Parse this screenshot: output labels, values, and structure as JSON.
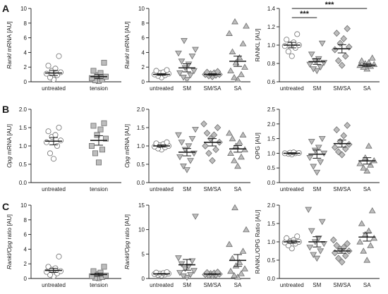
{
  "panel_letters": [
    "A",
    "B",
    "C"
  ],
  "chart_data": [
    {
      "id": "A1",
      "type": "scatter",
      "ylabel_italic": "Rankl",
      "ylabel_rest": " mRNA [AU]",
      "ylim": [
        0,
        10
      ],
      "yticks": [
        "0",
        "2",
        "4",
        "6",
        "8",
        "10"
      ],
      "categories": [
        "untreated",
        "tension"
      ],
      "series": [
        {
          "marker": "circle",
          "fill": "#ffffff",
          "points": [
            0.3,
            0.6,
            0.9,
            1.1,
            1.3,
            1.5,
            1.8,
            2.2,
            3.5
          ],
          "mean": 1.2,
          "sem": 0.35
        },
        {
          "marker": "square",
          "fill": "#bdbdbd",
          "points": [
            0.1,
            0.2,
            0.3,
            0.5,
            0.7,
            0.9,
            1.2,
            1.5,
            2.6
          ],
          "mean": 0.7,
          "sem": 0.28
        }
      ]
    },
    {
      "id": "A2",
      "type": "scatter",
      "ylabel_italic": "Rankl",
      "ylabel_rest": " mRNA [AU]",
      "ylim": [
        0,
        10
      ],
      "yticks": [
        "0",
        "2",
        "4",
        "6",
        "8",
        "10"
      ],
      "categories": [
        "untreated",
        "SM",
        "SM/SA",
        "SA"
      ],
      "series": [
        {
          "marker": "circle",
          "fill": "#ffffff",
          "points": [
            0.6,
            0.8,
            0.9,
            1.0,
            1.1,
            1.2,
            1.3,
            1.5,
            1.6
          ],
          "mean": 1.0,
          "sem": 0.12
        },
        {
          "marker": "tri-down",
          "fill": "#bdbdbd",
          "points": [
            0.3,
            0.6,
            0.9,
            1.2,
            1.5,
            1.9,
            2.4,
            2.8,
            3.5,
            3.9,
            4.4,
            5.6
          ],
          "mean": 1.9,
          "sem": 0.55
        },
        {
          "marker": "diamond",
          "fill": "#bdbdbd",
          "points": [
            0.7,
            0.8,
            0.9,
            1.0,
            1.0,
            1.1,
            1.2,
            1.3,
            1.4
          ],
          "mean": 1.0,
          "sem": 0.1
        },
        {
          "marker": "tri-up",
          "fill": "#bdbdbd",
          "points": [
            0.3,
            0.6,
            1.0,
            1.5,
            2.0,
            2.6,
            3.3,
            4.1,
            5.2,
            6.6,
            7.6,
            8.2
          ],
          "mean": 2.8,
          "sem": 0.7
        }
      ]
    },
    {
      "id": "A3",
      "type": "scatter",
      "ylabel_italic": "",
      "ylabel_rest": "RANKL [AU]",
      "ylim": [
        0.6,
        1.4
      ],
      "yticks": [
        "0.6",
        "0.8",
        "1.0",
        "1.2",
        "1.4"
      ],
      "categories": [
        "untreated",
        "SM",
        "SM/SA",
        "SA"
      ],
      "series": [
        {
          "marker": "circle",
          "fill": "#ffffff",
          "points": [
            0.88,
            0.93,
            0.97,
            0.99,
            1.0,
            1.01,
            1.03,
            1.06,
            1.12
          ],
          "mean": 1.0,
          "sem": 0.03
        },
        {
          "marker": "tri-down",
          "fill": "#bdbdbd",
          "points": [
            0.72,
            0.74,
            0.76,
            0.79,
            0.81,
            0.83,
            0.85,
            0.9,
            1.02
          ],
          "mean": 0.82,
          "sem": 0.03
        },
        {
          "marker": "diamond",
          "fill": "#bdbdbd",
          "points": [
            0.78,
            0.83,
            0.88,
            0.95,
            0.98,
            1.02,
            1.07,
            1.13,
            1.18
          ],
          "mean": 0.96,
          "sem": 0.045
        },
        {
          "marker": "tri-up",
          "fill": "#bdbdbd",
          "points": [
            0.74,
            0.76,
            0.77,
            0.78,
            0.79,
            0.8,
            0.81,
            0.83,
            0.86
          ],
          "mean": 0.78,
          "sem": 0.015
        }
      ],
      "significance": [
        {
          "from": 0,
          "to": 1,
          "label": "***",
          "level": 1.3
        },
        {
          "from": 0,
          "to": 3,
          "label": "***",
          "level": 1.4
        }
      ]
    },
    {
      "id": "B1",
      "type": "scatter",
      "ylabel_italic": "Opg",
      "ylabel_rest": " mRNA [AU]",
      "ylim": [
        0,
        2.0
      ],
      "yticks": [
        "0.0",
        "0.5",
        "1.0",
        "1.5",
        "2.0"
      ],
      "categories": [
        "untreated",
        "tension"
      ],
      "series": [
        {
          "marker": "circle",
          "fill": "#ffffff",
          "points": [
            0.65,
            0.8,
            1.0,
            1.1,
            1.15,
            1.25,
            1.3,
            1.4,
            1.5
          ],
          "mean": 1.13,
          "sem": 0.1
        },
        {
          "marker": "square",
          "fill": "#bdbdbd",
          "points": [
            0.55,
            0.8,
            0.9,
            1.0,
            1.2,
            1.3,
            1.45,
            1.55,
            1.62
          ],
          "mean": 1.15,
          "sem": 0.13
        }
      ]
    },
    {
      "id": "B2",
      "type": "scatter",
      "ylabel_italic": "Opg",
      "ylabel_rest": " mRNA [AU]",
      "ylim": [
        0,
        2.0
      ],
      "yticks": [
        "0.0",
        "0.5",
        "1.0",
        "1.5",
        "2.0"
      ],
      "categories": [
        "untreated",
        "SM",
        "SM/SA",
        "SA"
      ],
      "series": [
        {
          "marker": "circle",
          "fill": "#ffffff",
          "points": [
            0.9,
            0.93,
            0.96,
            0.98,
            1.0,
            1.02,
            1.05,
            1.07,
            1.1
          ],
          "mean": 1.0,
          "sem": 0.03
        },
        {
          "marker": "tri-down",
          "fill": "#bdbdbd",
          "points": [
            0.35,
            0.45,
            0.6,
            0.7,
            0.8,
            0.9,
            1.0,
            1.1,
            1.2,
            1.3,
            1.45
          ],
          "mean": 0.83,
          "sem": 0.1
        },
        {
          "marker": "diamond",
          "fill": "#bdbdbd",
          "points": [
            0.6,
            0.8,
            0.9,
            1.0,
            1.1,
            1.2,
            1.3,
            1.35,
            1.5,
            1.6
          ],
          "mean": 1.1,
          "sem": 0.1
        },
        {
          "marker": "tri-up",
          "fill": "#bdbdbd",
          "points": [
            0.45,
            0.6,
            0.7,
            0.8,
            0.9,
            1.0,
            1.1,
            1.2,
            1.3,
            1.35
          ],
          "mean": 0.92,
          "sem": 0.09
        }
      ]
    },
    {
      "id": "B3",
      "type": "scatter",
      "ylabel_italic": "",
      "ylabel_rest": "OPG [AU]",
      "ylim": [
        0,
        2.5
      ],
      "yticks": [
        "0.0",
        "0.5",
        "1.0",
        "1.5",
        "2.0",
        "2.5"
      ],
      "categories": [
        "untreated",
        "SM",
        "SM/SA",
        "SA"
      ],
      "series": [
        {
          "marker": "circle",
          "fill": "#ffffff",
          "points": [
            0.96,
            0.98,
            1.0,
            1.0,
            1.01,
            1.02,
            1.03
          ],
          "mean": 1.0,
          "sem": 0.02
        },
        {
          "marker": "tri-down",
          "fill": "#bdbdbd",
          "points": [
            0.35,
            0.55,
            0.7,
            0.85,
            1.0,
            1.1,
            1.2,
            1.4,
            1.5
          ],
          "mean": 0.97,
          "sem": 0.14
        },
        {
          "marker": "diamond",
          "fill": "#bdbdbd",
          "points": [
            0.95,
            1.05,
            1.15,
            1.2,
            1.3,
            1.4,
            1.6,
            1.8,
            1.95
          ],
          "mean": 1.33,
          "sem": 0.12
        },
        {
          "marker": "tri-up",
          "fill": "#bdbdbd",
          "points": [
            0.4,
            0.5,
            0.6,
            0.65,
            0.75,
            0.85,
            1.25
          ],
          "mean": 0.74,
          "sem": 0.11
        }
      ]
    },
    {
      "id": "C1",
      "type": "scatter",
      "ylabel_italic": "Rankl/Opg",
      "ylabel_rest": " ratio [AU]",
      "ylim": [
        0,
        10
      ],
      "yticks": [
        "0",
        "2",
        "4",
        "6",
        "8",
        "10"
      ],
      "categories": [
        "untreated",
        "tension"
      ],
      "series": [
        {
          "marker": "circle",
          "fill": "#ffffff",
          "points": [
            0.3,
            0.5,
            0.7,
            0.9,
            1.0,
            1.2,
            1.4,
            1.6,
            3.0
          ],
          "mean": 1.1,
          "sem": 0.28
        },
        {
          "marker": "square",
          "fill": "#bdbdbd",
          "points": [
            0.05,
            0.1,
            0.2,
            0.3,
            0.4,
            0.6,
            0.8,
            1.0,
            1.6
          ],
          "mean": 0.55,
          "sem": 0.18
        }
      ]
    },
    {
      "id": "C2",
      "type": "scatter",
      "ylabel_italic": "Rankl/Opg",
      "ylabel_rest": " ratio [AU]",
      "ylim": [
        0,
        15
      ],
      "yticks": [
        "0",
        "5",
        "10",
        "15"
      ],
      "categories": [
        "untreated",
        "SM",
        "SM/SA",
        "SA"
      ],
      "series": [
        {
          "marker": "circle",
          "fill": "#ffffff",
          "points": [
            0.6,
            0.7,
            0.8,
            0.9,
            1.0,
            1.0,
            1.1,
            1.2,
            1.3
          ],
          "mean": 0.95,
          "sem": 0.08
        },
        {
          "marker": "tri-down",
          "fill": "#bdbdbd",
          "points": [
            0.2,
            0.5,
            0.8,
            1.2,
            1.6,
            2.0,
            2.5,
            3.0,
            3.6,
            4.2,
            12.7
          ],
          "mean": 2.8,
          "sem": 1.1
        },
        {
          "marker": "diamond",
          "fill": "#bdbdbd",
          "points": [
            0.5,
            0.6,
            0.7,
            0.8,
            0.9,
            1.0,
            1.1,
            1.2,
            1.3
          ],
          "mean": 0.9,
          "sem": 0.08
        },
        {
          "marker": "tri-up",
          "fill": "#bdbdbd",
          "points": [
            0.3,
            0.6,
            1.0,
            1.5,
            2.0,
            2.6,
            3.3,
            4.1,
            5.6,
            7.0,
            10.0,
            14.5
          ],
          "mean": 3.7,
          "sem": 1.2
        }
      ]
    },
    {
      "id": "C3",
      "type": "scatter",
      "ylabel_italic": "",
      "ylabel_rest": "RANKL/OPG Ratio [AU]",
      "ylim": [
        0,
        2.0
      ],
      "yticks": [
        "0.0",
        "0.5",
        "1.0",
        "1.5",
        "2.0"
      ],
      "categories": [
        "untreated",
        "SM",
        "SM/SA",
        "SA"
      ],
      "series": [
        {
          "marker": "circle",
          "fill": "#ffffff",
          "points": [
            0.82,
            0.9,
            0.95,
            0.98,
            1.0,
            1.02,
            1.05,
            1.1,
            1.15
          ],
          "mean": 1.0,
          "sem": 0.04
        },
        {
          "marker": "tri-down",
          "fill": "#bdbdbd",
          "points": [
            0.55,
            0.65,
            0.75,
            0.85,
            0.95,
            1.0,
            1.1,
            1.3,
            1.55,
            1.88
          ],
          "mean": 1.0,
          "sem": 0.14
        },
        {
          "marker": "diamond",
          "fill": "#bdbdbd",
          "points": [
            0.45,
            0.55,
            0.62,
            0.7,
            0.75,
            0.8,
            0.85,
            0.9,
            0.95,
            1.05
          ],
          "mean": 0.75,
          "sem": 0.06
        },
        {
          "marker": "tri-up",
          "fill": "#bdbdbd",
          "points": [
            0.5,
            0.75,
            0.9,
            1.0,
            1.1,
            1.2,
            1.3,
            1.5,
            1.85
          ],
          "mean": 1.13,
          "sem": 0.11
        }
      ]
    }
  ]
}
